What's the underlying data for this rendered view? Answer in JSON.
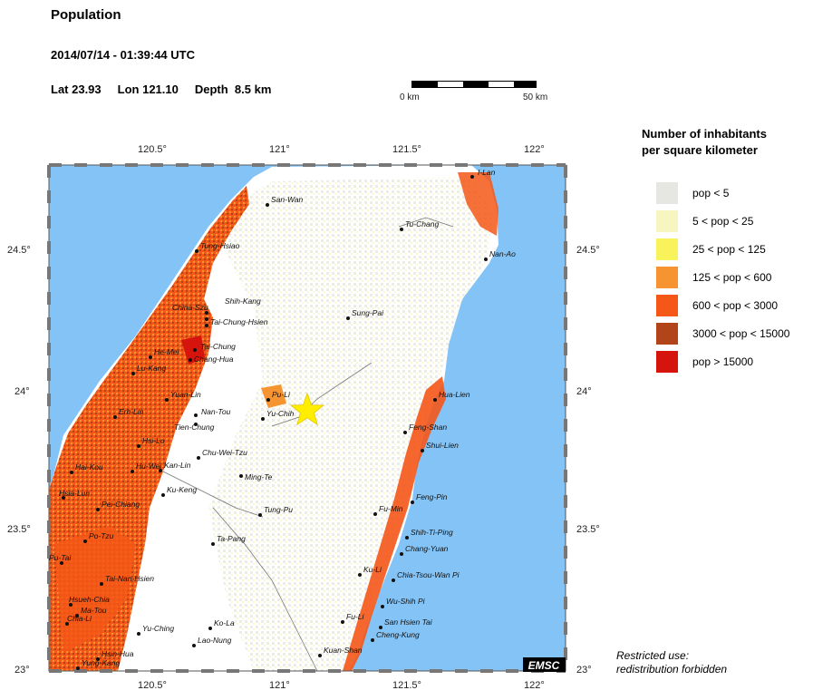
{
  "header": {
    "title": "Population",
    "datetime": "2014/07/14 - 01:39:44 UTC",
    "lat": "Lat 23.93",
    "lon": "Lon 121.10",
    "depth": "Depth  8.5 km"
  },
  "scale": {
    "start_label": "0 km",
    "end_label": "50 km"
  },
  "axes": {
    "lon_ticks": [
      "120.5°",
      "121°",
      "121.5°",
      "122°"
    ],
    "lat_ticks": [
      "24.5°",
      "24°",
      "23.5°",
      "23°"
    ]
  },
  "legend": {
    "title_line1": "Number of inhabitants",
    "title_line2": "per square kilometer",
    "items": [
      {
        "label": "pop < 5",
        "color": "#e6e6e2"
      },
      {
        "label": "5 < pop < 25",
        "color": "#f8f6c0"
      },
      {
        "label": "25 < pop < 125",
        "color": "#f8f35a"
      },
      {
        "label": "125 < pop < 600",
        "color": "#f79432"
      },
      {
        "label": "600 < pop < 3000",
        "color": "#f45718"
      },
      {
        "label": "3000 < pop < 15000",
        "color": "#b2441a"
      },
      {
        "label": "pop > 15000",
        "color": "#d5140e"
      }
    ]
  },
  "colors": {
    "sea": "#84c3f5",
    "land": "#ffffff",
    "epicenter": "#ffee00"
  },
  "cities": [
    {
      "name": "I-Lan"
    },
    {
      "name": "San-Wan"
    },
    {
      "name": "Tu-Chang"
    },
    {
      "name": "Tung-Hsiao"
    },
    {
      "name": "Nan-Ao"
    },
    {
      "name": "China-Szu"
    },
    {
      "name": "Shih-Kang"
    },
    {
      "name": "Tai-Chung-Hsien"
    },
    {
      "name": "Sung-Pai"
    },
    {
      "name": "Tai-Chung"
    },
    {
      "name": "He-Mei"
    },
    {
      "name": "Chang-Hua"
    },
    {
      "name": "Lu-Kang"
    },
    {
      "name": "Pu-Li"
    },
    {
      "name": "Hua-Lien"
    },
    {
      "name": "Yuan-Lin"
    },
    {
      "name": "Nan-Tou"
    },
    {
      "name": "Yu-Chih"
    },
    {
      "name": "Erh-Lin"
    },
    {
      "name": "Tien-Chung"
    },
    {
      "name": "Feng-Shan"
    },
    {
      "name": "Hsi-Lo"
    },
    {
      "name": "Shui-Lien"
    },
    {
      "name": "Chu-Wei-Tzu"
    },
    {
      "name": "Hai-Kou"
    },
    {
      "name": "Hu-Wei"
    },
    {
      "name": "Kan-Lin"
    },
    {
      "name": "Ming-Te"
    },
    {
      "name": "Hsia-Lun"
    },
    {
      "name": "Ku-Keng"
    },
    {
      "name": "Feng-Pin"
    },
    {
      "name": "Pei-Chiang"
    },
    {
      "name": "Tung-Pu"
    },
    {
      "name": "Fu-Min"
    },
    {
      "name": "Po-Tzu"
    },
    {
      "name": "Shih-Ti-Ping"
    },
    {
      "name": "Ta-Pang"
    },
    {
      "name": "Chang-Yuan"
    },
    {
      "name": "Pu-Tai"
    },
    {
      "name": "Ku-Li"
    },
    {
      "name": "Chia-Tsou-Wan Pi"
    },
    {
      "name": "Tai-Nan-Hsien"
    },
    {
      "name": "Hsueh-Chia"
    },
    {
      "name": "Wu-Shih Pi"
    },
    {
      "name": "Ma-Tou"
    },
    {
      "name": "Chia-Li"
    },
    {
      "name": "Fu-Li"
    },
    {
      "name": "San Hsien Tai"
    },
    {
      "name": "Yu-Ching"
    },
    {
      "name": "Ko-La"
    },
    {
      "name": "Cheng-Kung"
    },
    {
      "name": "Lao-Nung"
    },
    {
      "name": "Hsin-Hua"
    },
    {
      "name": "Kuan-Shan"
    },
    {
      "name": "Yung-Kang"
    }
  ],
  "logo": "EMSC",
  "notice": {
    "line1": "Restricted use:",
    "line2": "redistribution forbidden"
  }
}
